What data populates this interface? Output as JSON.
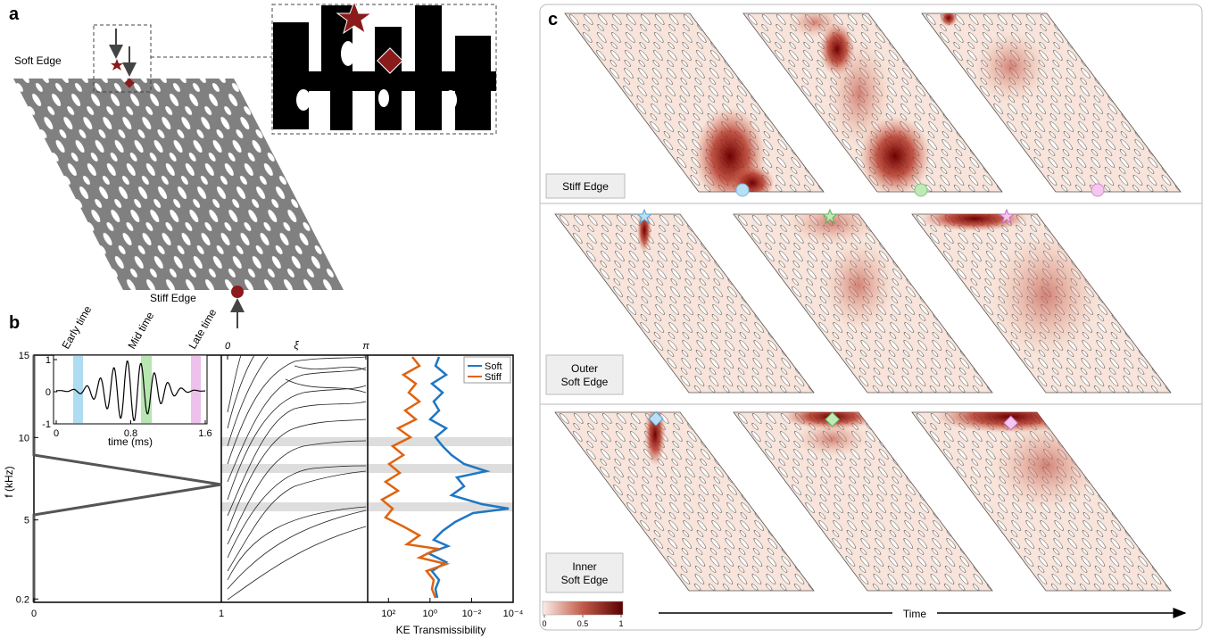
{
  "panel_a": {
    "label": "a",
    "soft_edge": "Soft Edge",
    "stiff_edge": "Stiff Edge"
  },
  "panel_b": {
    "label": "b",
    "inset": {
      "annotations": [
        "Early time",
        "Mid time",
        "Late time"
      ],
      "xlabel": "time (ms)",
      "xlim": [
        0,
        1.6
      ],
      "xticks": [
        0,
        0.8,
        1.6
      ],
      "ylim": [
        -1,
        1
      ],
      "yticks": [
        -1,
        0,
        1
      ]
    },
    "spectrum": {
      "ylabel": "f (kHz)",
      "ylim": [
        0,
        15
      ],
      "yticks": [
        0.2,
        5,
        10,
        15
      ],
      "xlim": [
        0,
        1
      ],
      "xticks": [
        0,
        1
      ]
    },
    "dispersion": {
      "xlabel": "ξ",
      "xlim": [
        0,
        3.1416
      ],
      "xticks": [
        {
          "value": 0,
          "label": "0"
        },
        {
          "value": 3.1416,
          "label": "π"
        }
      ]
    },
    "transmissibility": {
      "xlabel": "KE Transmissibility",
      "log_scale": true,
      "reversed": true,
      "xlim": [
        1000,
        0.0001
      ],
      "xticks": [
        {
          "value": 100,
          "label": "10²"
        },
        {
          "value": 1,
          "label": "10⁰"
        },
        {
          "value": 0.01,
          "label": "10⁻²"
        },
        {
          "value": 0.0001,
          "label": "10⁻⁴"
        }
      ],
      "series": [
        {
          "name": "Soft",
          "color": "#1f77c4"
        },
        {
          "name": "Stiff",
          "color": "#e0630f"
        }
      ]
    }
  },
  "panel_c": {
    "label": "c",
    "rows": [
      "Stiff Edge",
      "Outer Soft Edge",
      "Inner Soft Edge"
    ],
    "colorbar_ticks": [
      0,
      0.5,
      1
    ],
    "time_label": "Time"
  }
}
